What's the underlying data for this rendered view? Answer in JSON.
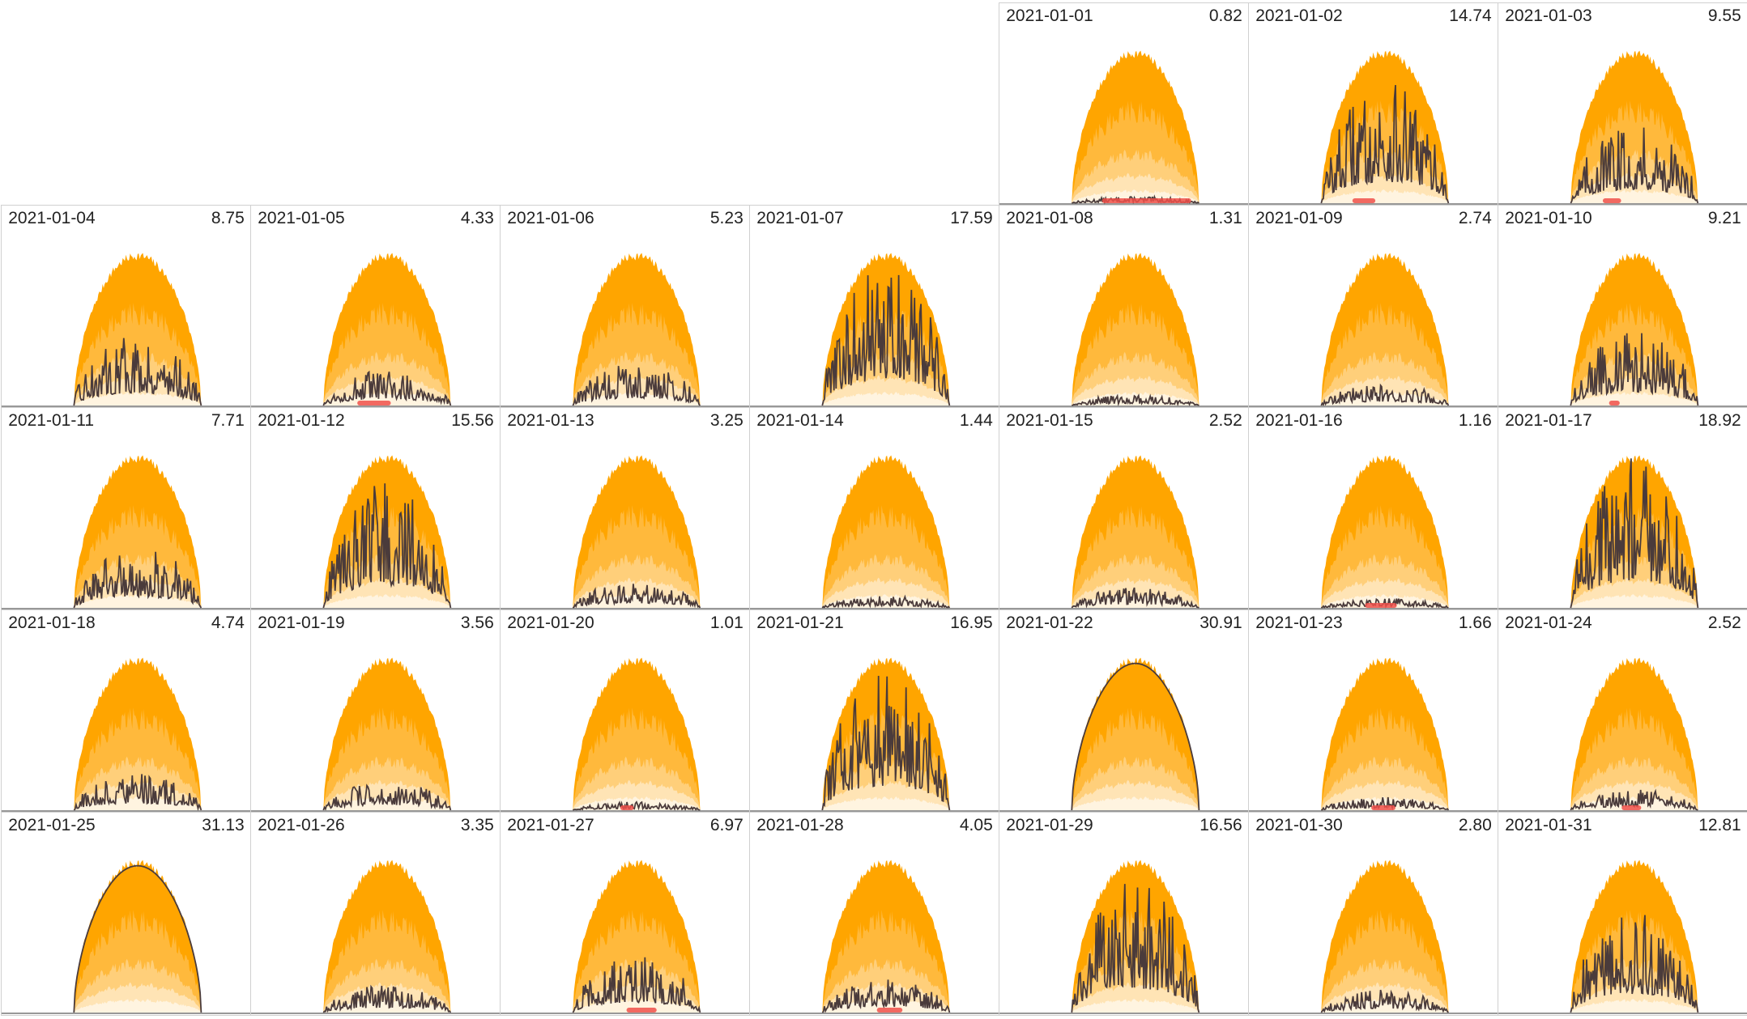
{
  "chart_data": {
    "type": "area",
    "layout": "calendar small multiples, 7 columns",
    "leading_empty_cells": 4,
    "band_colors": [
      "#FFA500",
      "#FFB93C",
      "#FFCF7A",
      "#FFE4B5",
      "#FFF4E0"
    ],
    "line_color": "#4a3b3b",
    "marker_color": "#F0504A",
    "days": [
      {
        "date": "2021-01-01",
        "value": "0.82",
        "marker": true
      },
      {
        "date": "2021-01-02",
        "value": "14.74",
        "marker": true
      },
      {
        "date": "2021-01-03",
        "value": "9.55",
        "marker": true
      },
      {
        "date": "2021-01-04",
        "value": "8.75",
        "marker": false
      },
      {
        "date": "2021-01-05",
        "value": "4.33",
        "marker": true
      },
      {
        "date": "2021-01-06",
        "value": "5.23",
        "marker": false
      },
      {
        "date": "2021-01-07",
        "value": "17.59",
        "marker": false
      },
      {
        "date": "2021-01-08",
        "value": "1.31",
        "marker": false
      },
      {
        "date": "2021-01-09",
        "value": "2.74",
        "marker": false
      },
      {
        "date": "2021-01-10",
        "value": "9.21",
        "marker": true
      },
      {
        "date": "2021-01-11",
        "value": "7.71",
        "marker": false
      },
      {
        "date": "2021-01-12",
        "value": "15.56",
        "marker": false
      },
      {
        "date": "2021-01-13",
        "value": "3.25",
        "marker": false
      },
      {
        "date": "2021-01-14",
        "value": "1.44",
        "marker": false
      },
      {
        "date": "2021-01-15",
        "value": "2.52",
        "marker": false
      },
      {
        "date": "2021-01-16",
        "value": "1.16",
        "marker": true
      },
      {
        "date": "2021-01-17",
        "value": "18.92",
        "marker": false
      },
      {
        "date": "2021-01-18",
        "value": "4.74",
        "marker": false
      },
      {
        "date": "2021-01-19",
        "value": "3.56",
        "marker": false
      },
      {
        "date": "2021-01-20",
        "value": "1.01",
        "marker": true
      },
      {
        "date": "2021-01-21",
        "value": "16.95",
        "marker": false
      },
      {
        "date": "2021-01-22",
        "value": "30.91",
        "marker": false
      },
      {
        "date": "2021-01-23",
        "value": "1.66",
        "marker": true
      },
      {
        "date": "2021-01-24",
        "value": "2.52",
        "marker": true
      },
      {
        "date": "2021-01-25",
        "value": "31.13",
        "marker": false
      },
      {
        "date": "2021-01-26",
        "value": "3.35",
        "marker": false
      },
      {
        "date": "2021-01-27",
        "value": "6.97",
        "marker": true
      },
      {
        "date": "2021-01-28",
        "value": "4.05",
        "marker": true
      },
      {
        "date": "2021-01-29",
        "value": "16.56",
        "marker": false
      },
      {
        "date": "2021-01-30",
        "value": "2.80",
        "marker": false
      },
      {
        "date": "2021-01-31",
        "value": "12.81",
        "marker": false
      }
    ]
  }
}
